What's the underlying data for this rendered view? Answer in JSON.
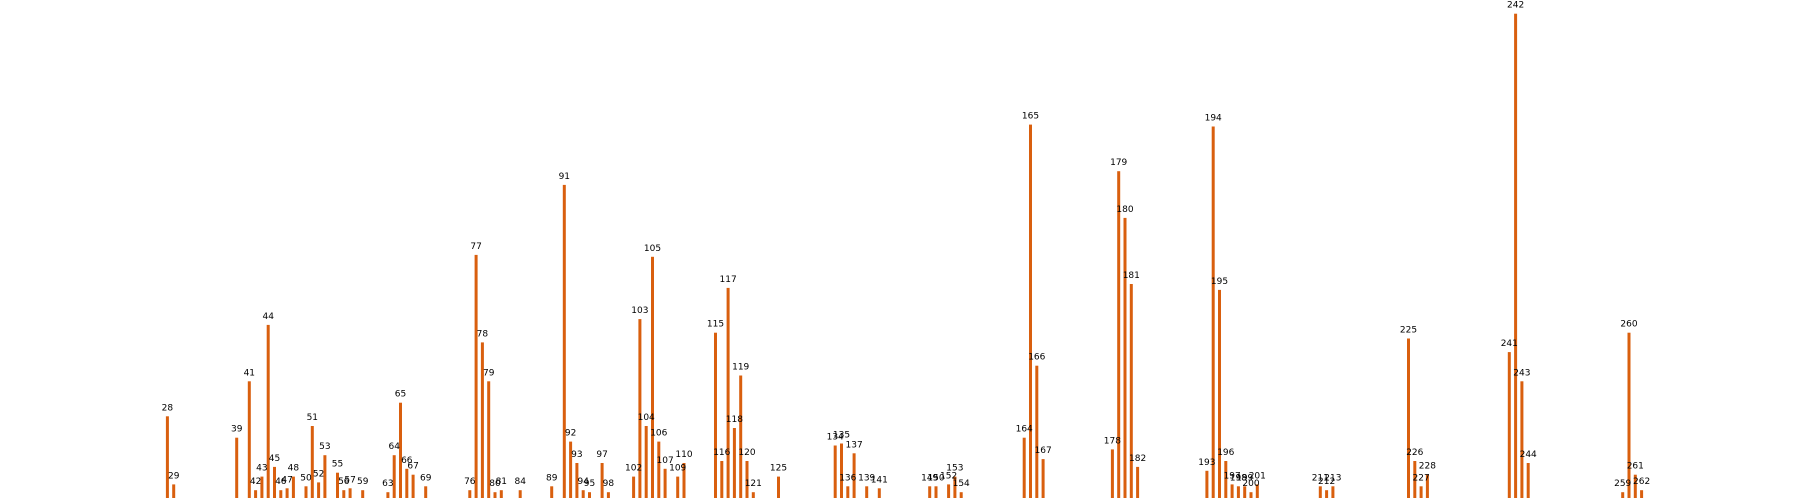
{
  "chart_data": {
    "type": "bar",
    "title": "",
    "xlabel": "",
    "ylabel": "",
    "grid": false,
    "legend": "none",
    "x_range": [
      0,
      270
    ],
    "ylim": [
      0,
      250
    ],
    "color": "#d95f0e",
    "x": [
      28,
      29,
      39,
      41,
      42,
      43,
      44,
      45,
      46,
      47,
      48,
      50,
      51,
      52,
      53,
      55,
      56,
      57,
      59,
      63,
      64,
      65,
      66,
      67,
      69,
      76,
      77,
      78,
      79,
      80,
      81,
      84,
      89,
      91,
      92,
      93,
      94,
      95,
      97,
      98,
      102,
      103,
      104,
      105,
      106,
      107,
      109,
      110,
      115,
      116,
      117,
      118,
      119,
      120,
      121,
      125,
      134,
      135,
      136,
      137,
      139,
      141,
      149,
      150,
      152,
      153,
      154,
      164,
      165,
      166,
      167,
      178,
      179,
      180,
      181,
      182,
      193,
      194,
      195,
      196,
      197,
      198,
      199,
      200,
      201,
      211,
      212,
      213,
      225,
      226,
      227,
      228,
      241,
      242,
      243,
      244,
      259,
      260,
      261,
      262
    ],
    "values": [
      42,
      7,
      31,
      60,
      4,
      11,
      89,
      16,
      4,
      5,
      11,
      6,
      37,
      8,
      22,
      13,
      4,
      5,
      4,
      3,
      22,
      49,
      15,
      12,
      6,
      4,
      125,
      80,
      60,
      3,
      4,
      4,
      6,
      161,
      29,
      18,
      4,
      3,
      18,
      3,
      11,
      92,
      37,
      124,
      29,
      15,
      11,
      18,
      85,
      19,
      108,
      36,
      63,
      19,
      3,
      11,
      27,
      28,
      6,
      23,
      6,
      5,
      6,
      6,
      7,
      11,
      3,
      31,
      192,
      68,
      20,
      25,
      168,
      144,
      110,
      16,
      14,
      191,
      107,
      19,
      7,
      6,
      6,
      3,
      7,
      6,
      4,
      6,
      82,
      19,
      6,
      12,
      75,
      249,
      60,
      18,
      3,
      85,
      12,
      4
    ]
  }
}
